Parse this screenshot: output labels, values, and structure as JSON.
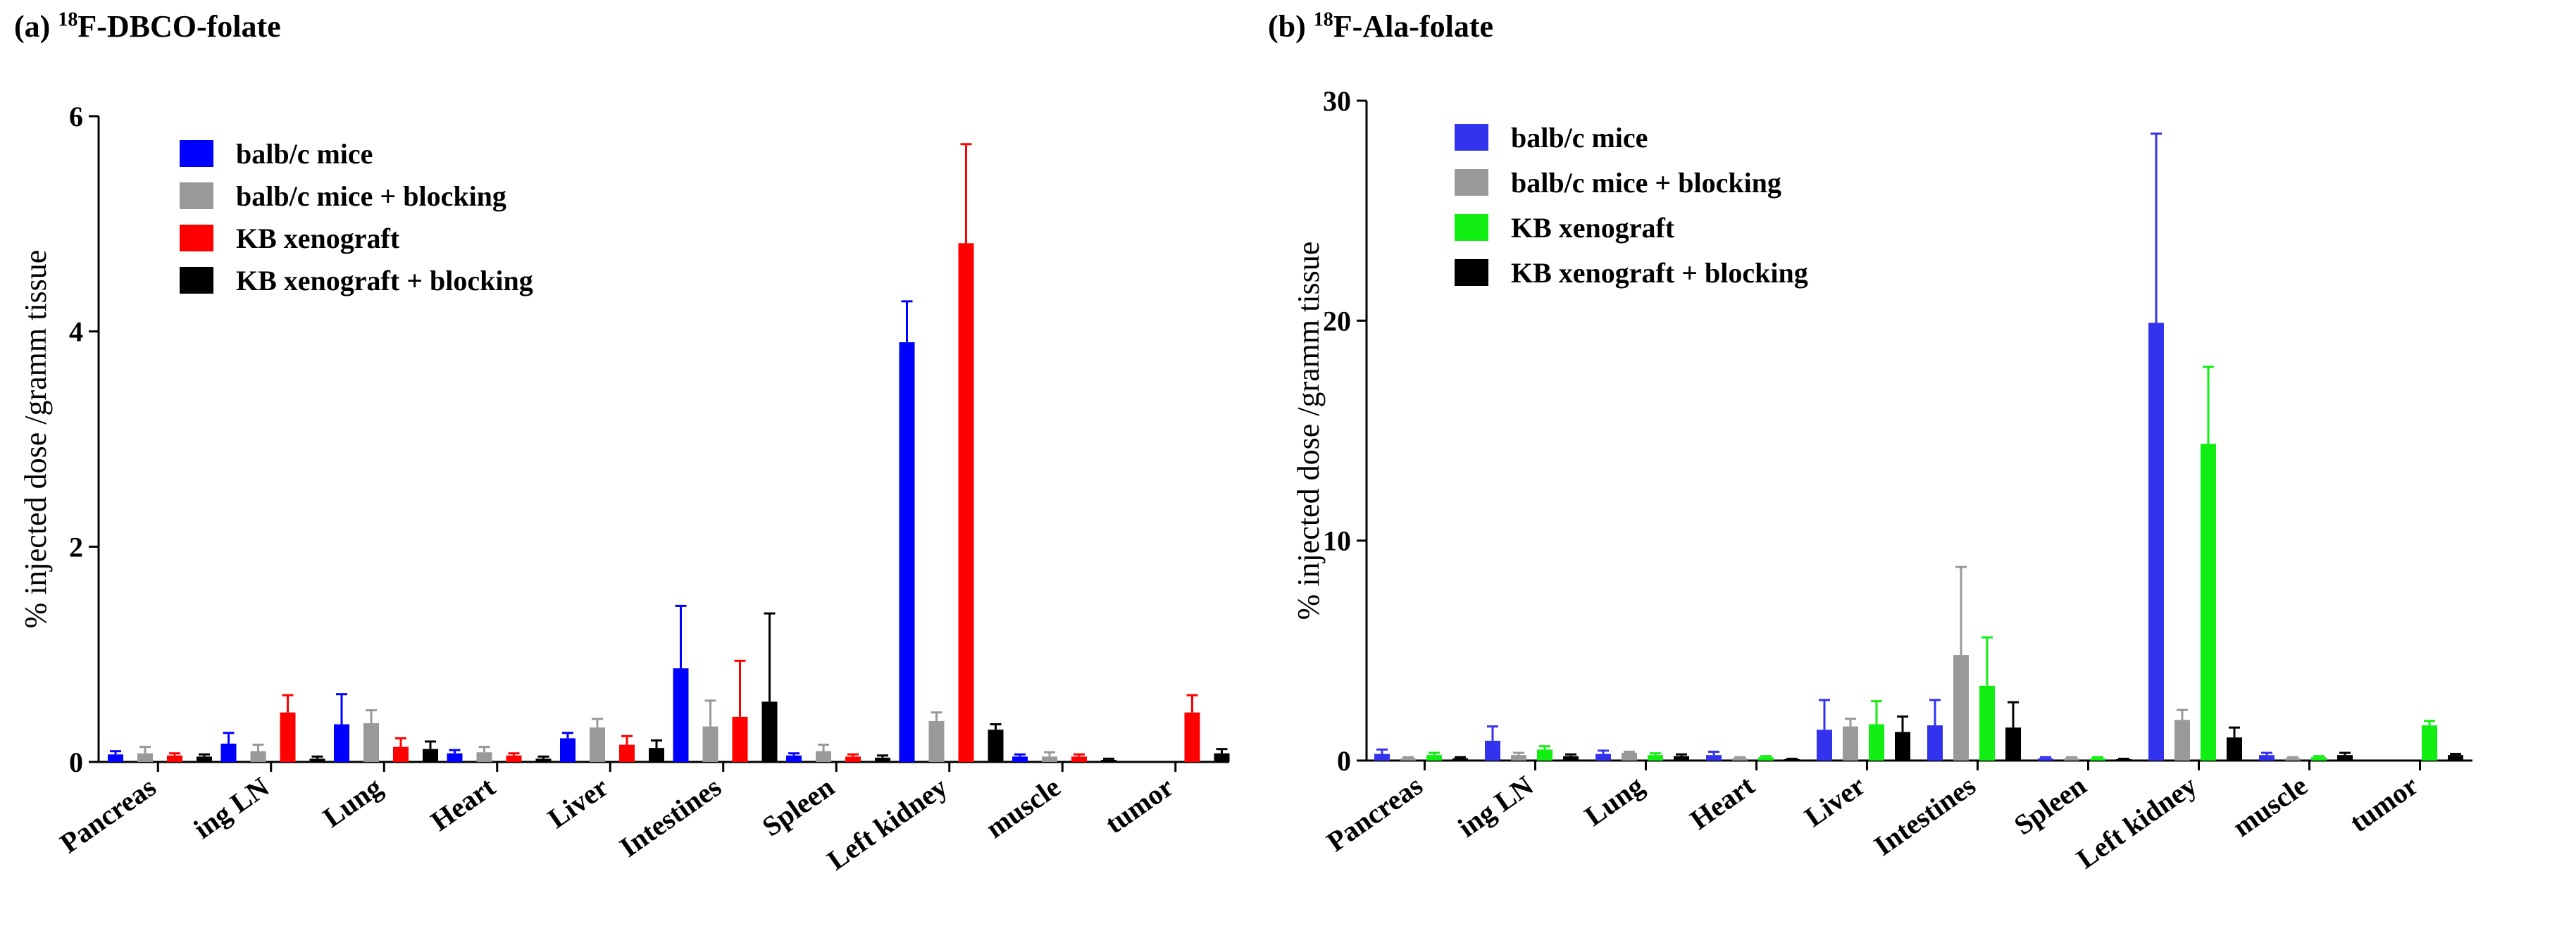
{
  "panels": [
    {
      "label": "(a)",
      "sup": "18",
      "name": "F-DBCO-folate"
    },
    {
      "label": "(b)",
      "sup": "18",
      "name": "F-Ala-folate"
    }
  ],
  "chart_data": [
    {
      "type": "bar",
      "title": "(a) 18F-DBCO-folate",
      "ylabel": "% injected dose /gramm tissue",
      "xlabel": "",
      "ylim": [
        0,
        6
      ],
      "yticks": [
        0,
        2,
        4,
        6
      ],
      "categories": [
        "Pancreas",
        "ing LN",
        "Lung",
        "Heart",
        "Liver",
        "Intestines",
        "Spleen",
        "Left kidney",
        "muscle",
        "tumor"
      ],
      "series": [
        {
          "name": "balb/c mice",
          "color": "#0000ff",
          "values": [
            0.07,
            0.17,
            0.35,
            0.08,
            0.22,
            0.87,
            0.06,
            3.9,
            0.05,
            null
          ],
          "errors": [
            0.03,
            0.1,
            0.28,
            0.03,
            0.05,
            0.58,
            0.02,
            0.38,
            0.02,
            null
          ]
        },
        {
          "name": "balb/c mice + blocking",
          "color": "#999999",
          "values": [
            0.08,
            0.1,
            0.36,
            0.09,
            0.32,
            0.33,
            0.1,
            0.38,
            0.05,
            null
          ],
          "errors": [
            0.06,
            0.06,
            0.12,
            0.05,
            0.08,
            0.24,
            0.06,
            0.08,
            0.04,
            null
          ]
        },
        {
          "name": "KB xenograft",
          "color": "#ff0000",
          "values": [
            0.06,
            0.46,
            0.14,
            0.06,
            0.16,
            0.42,
            0.05,
            4.82,
            0.05,
            0.46
          ]
        },
        {
          "name": "KB xenograft + blocking",
          "color": "#000000",
          "values": [
            0.05,
            0.03,
            0.12,
            0.03,
            0.13,
            0.56,
            0.04,
            0.3,
            0.02,
            0.08
          ]
        }
      ],
      "errors_c": [
        0.02,
        0.16,
        0.08,
        0.02,
        0.08,
        0.52,
        0.02,
        0.92,
        0.02,
        0.16
      ],
      "errors_d": [
        0.02,
        0.02,
        0.07,
        0.02,
        0.07,
        0.82,
        0.02,
        0.05,
        0.01,
        0.04
      ],
      "legend_position": "top-left"
    },
    {
      "type": "bar",
      "title": "(b) 18F-Ala-folate",
      "ylabel": "% injected dose /gramm tissue",
      "xlabel": "",
      "ylim": [
        0,
        30
      ],
      "yticks": [
        0,
        10,
        20,
        30
      ],
      "categories": [
        "Pancreas",
        "ing LN",
        "Lung",
        "Heart",
        "Liver",
        "Intestines",
        "Spleen",
        "Left kidney",
        "muscle",
        "tumor"
      ],
      "series": [
        {
          "name": "balb/c mice",
          "color": "#3333ee",
          "values": [
            0.3,
            0.9,
            0.3,
            0.25,
            1.4,
            1.6,
            0.1,
            19.9,
            0.25,
            null
          ]
        },
        {
          "name": "balb/c mice + blocking",
          "color": "#999999",
          "values": [
            0.1,
            0.25,
            0.35,
            0.1,
            1.55,
            4.8,
            0.1,
            1.85,
            0.1,
            null
          ]
        },
        {
          "name": "KB xenograft",
          "color": "#11ee11",
          "values": [
            0.25,
            0.5,
            0.25,
            0.15,
            1.65,
            3.4,
            0.1,
            14.4,
            0.15,
            1.6
          ]
        },
        {
          "name": "KB xenograft + blocking",
          "color": "#000000",
          "values": [
            0.1,
            0.2,
            0.2,
            0.05,
            1.3,
            1.5,
            0.05,
            1.05,
            0.25,
            0.25
          ]
        }
      ],
      "errors_all": [
        [
          0.2,
          0.65,
          0.15,
          0.15,
          1.35,
          1.15,
          0.05,
          8.6,
          0.1,
          null
        ],
        [
          0.05,
          0.1,
          0.05,
          0.05,
          0.35,
          4.0,
          0.05,
          0.45,
          0.05,
          null
        ],
        [
          0.1,
          0.15,
          0.08,
          0.05,
          1.05,
          2.2,
          0.05,
          3.5,
          0.05,
          0.2
        ],
        [
          0.05,
          0.08,
          0.08,
          0.03,
          0.7,
          1.15,
          0.03,
          0.45,
          0.1,
          0.05
        ]
      ],
      "legend_position": "top-left"
    }
  ]
}
